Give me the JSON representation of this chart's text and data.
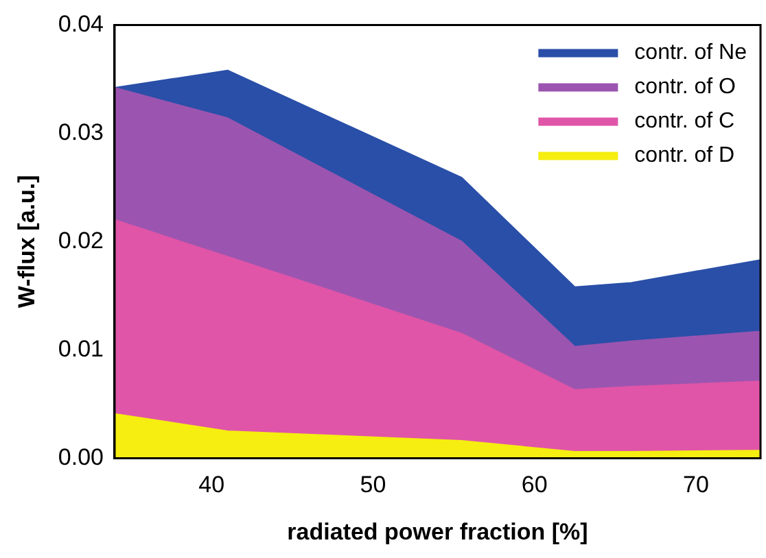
{
  "chart_data": {
    "type": "area",
    "stacked": true,
    "xlabel": "radiated power fraction [%]",
    "ylabel": "W-flux [a.u.]",
    "x": [
      34,
      41,
      55.5,
      62.5,
      66,
      74
    ],
    "series": [
      {
        "name": "contr. of D",
        "color": "#f5ee10",
        "values": [
          0.0041,
          0.0025,
          0.0016,
          0.0006,
          0.0006,
          0.0007
        ]
      },
      {
        "name": "contr. of C",
        "color": "#e055a8",
        "values": [
          0.0179,
          0.0161,
          0.0099,
          0.0057,
          0.006,
          0.0064
        ]
      },
      {
        "name": "contr. of O",
        "color": "#9b55b0",
        "values": [
          0.0122,
          0.0128,
          0.0085,
          0.004,
          0.0042,
          0.0046
        ]
      },
      {
        "name": "contr. of Ne",
        "color": "#2a4fa8",
        "values": [
          0,
          0.0044,
          0.0059,
          0.0055,
          0.0054,
          0.0066
        ]
      }
    ],
    "xlim": [
      34,
      74
    ],
    "xticks": [
      40,
      50,
      60,
      70
    ],
    "ylim": [
      0,
      0.04
    ],
    "yticks": [
      {
        "value": 0,
        "label": "0.00"
      },
      {
        "value": 0.01,
        "label": "0.01"
      },
      {
        "value": 0.02,
        "label": "0.02"
      },
      {
        "value": 0.03,
        "label": "0.03"
      },
      {
        "value": 0.04,
        "label": "0.04"
      }
    ],
    "grid": false,
    "legend": "top right",
    "marker": "none"
  }
}
